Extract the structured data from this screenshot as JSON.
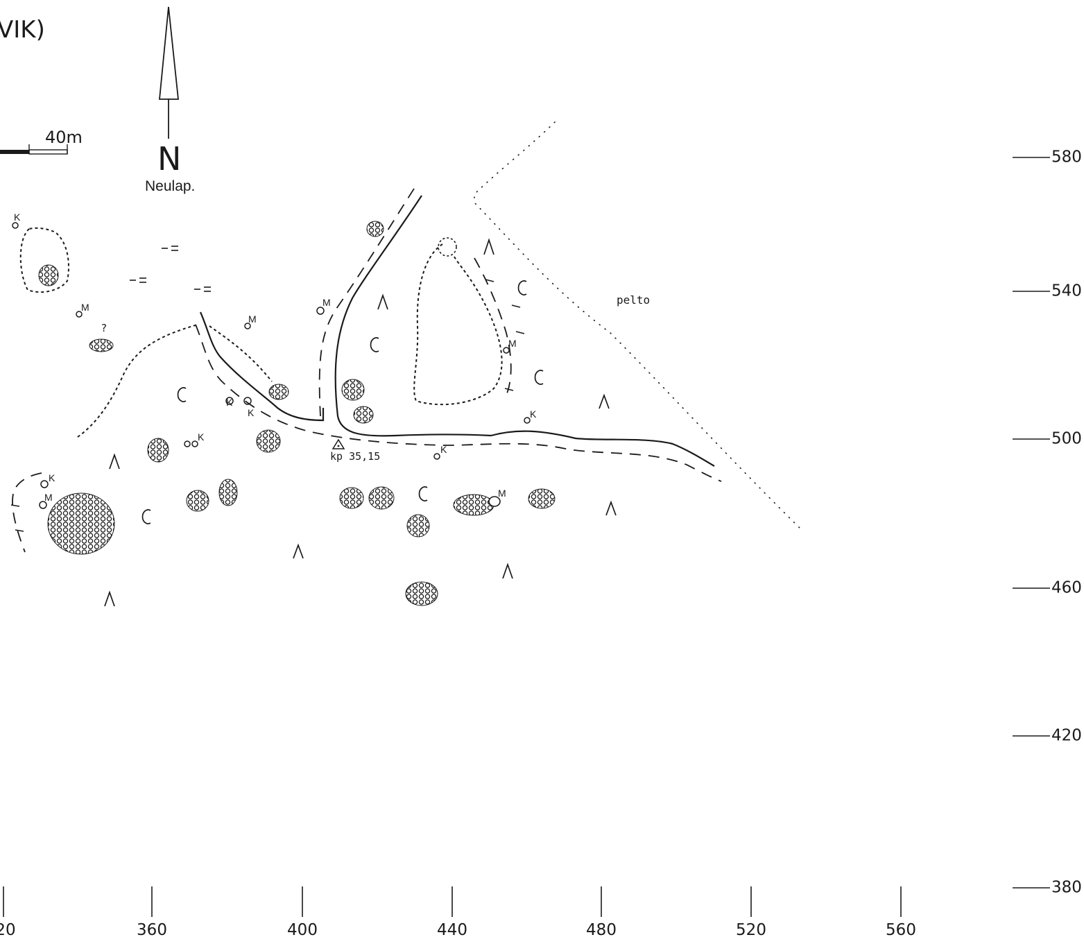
{
  "title_fragment": "VIK)",
  "north_arrow": {
    "letter": "N",
    "projection": "Neulap."
  },
  "scale_bar": {
    "label": "40m"
  },
  "labels": {
    "field": "pelto",
    "benchmark": "kp 35,15",
    "uncertain": "?"
  },
  "markers": {
    "k": "K",
    "m": "M"
  },
  "x_axis_ticks": [
    "20",
    "360",
    "400",
    "440",
    "480",
    "520",
    "560"
  ],
  "y_axis_ticks": [
    "580",
    "540",
    "500",
    "460",
    "420",
    "380"
  ],
  "colors": {
    "ink": "#1a1a1a",
    "paper": "#ffffff"
  }
}
